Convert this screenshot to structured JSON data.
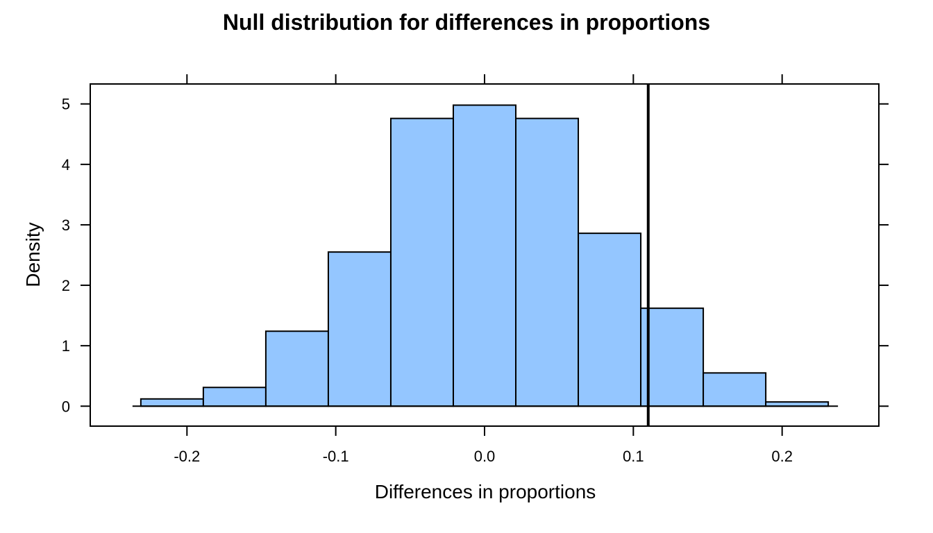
{
  "chart_data": {
    "type": "bar",
    "title": "Null distribution for differences in proportions",
    "xlabel": "Differences in proportions",
    "ylabel": "Density",
    "xlim": [
      -0.265,
      0.265
    ],
    "ylim": [
      -0.33,
      5.33
    ],
    "x_ticks": [
      -0.2,
      -0.1,
      0.0,
      0.1,
      0.2
    ],
    "x_tick_labels": [
      "-0.2",
      "-0.1",
      "0.0",
      "0.1",
      "0.2"
    ],
    "y_ticks": [
      0,
      1,
      2,
      3,
      4,
      5
    ],
    "y_tick_labels": [
      "0",
      "1",
      "2",
      "3",
      "4",
      "5"
    ],
    "bins": [
      {
        "x0": -0.231,
        "x1": -0.189,
        "density": 0.12
      },
      {
        "x0": -0.189,
        "x1": -0.147,
        "density": 0.31
      },
      {
        "x0": -0.147,
        "x1": -0.105,
        "density": 1.24
      },
      {
        "x0": -0.105,
        "x1": -0.063,
        "density": 2.55
      },
      {
        "x0": -0.063,
        "x1": -0.021,
        "density": 4.76
      },
      {
        "x0": -0.021,
        "x1": 0.021,
        "density": 4.98
      },
      {
        "x0": 0.021,
        "x1": 0.063,
        "density": 4.76
      },
      {
        "x0": 0.063,
        "x1": 0.105,
        "density": 2.86
      },
      {
        "x0": 0.105,
        "x1": 0.147,
        "density": 1.62
      },
      {
        "x0": 0.147,
        "x1": 0.189,
        "density": 0.55
      },
      {
        "x0": 0.189,
        "x1": 0.231,
        "density": 0.07
      }
    ],
    "reference_line_x": 0.11,
    "bar_color": "#94c6ff",
    "grid": false
  }
}
